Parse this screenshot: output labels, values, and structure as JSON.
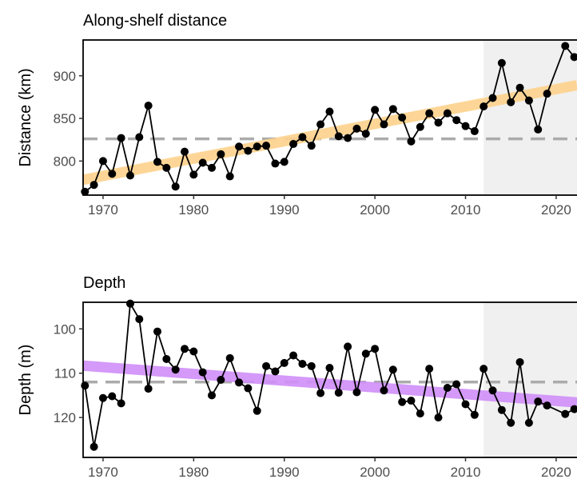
{
  "chart_data": [
    {
      "type": "line",
      "title": "Along-shelf distance",
      "xlabel": "",
      "ylabel": "Distance (km)",
      "xlim": [
        1967.8,
        2022.3
      ],
      "ylim": [
        760,
        942
      ],
      "xticks": [
        1970,
        1980,
        1990,
        2000,
        2010,
        2020
      ],
      "yticks": [
        800,
        850,
        900
      ],
      "y_reversed": false,
      "grid": false,
      "shaded_region": {
        "from": 2012,
        "to": 2022.3,
        "color": "#f0f0f0"
      },
      "reference_line": {
        "y": 826,
        "style": "dashed",
        "color": "#a6a6a6"
      },
      "trend_line": {
        "x": [
          1967.8,
          2022.3
        ],
        "y": [
          778,
          889
        ],
        "color": "#fdd18c"
      },
      "series": [
        {
          "x": [
            1968,
            1969,
            1970,
            1971,
            1972,
            1973,
            1974,
            1975,
            1976,
            1977,
            1978,
            1979,
            1980,
            1981,
            1982,
            1983,
            1984,
            1985,
            1986,
            1987,
            1988,
            1989,
            1990,
            1991,
            1992,
            1993,
            1994,
            1995,
            1996,
            1997,
            1998,
            1999,
            2000,
            2001,
            2002,
            2003,
            2004,
            2005,
            2006,
            2007,
            2008,
            2009,
            2010,
            2011,
            2012,
            2013,
            2014,
            2015,
            2016,
            2017,
            2018,
            2019,
            2021,
            2022
          ],
          "values": [
            764,
            772,
            800,
            785,
            827,
            783,
            828,
            865,
            799,
            792,
            770,
            811,
            784,
            798,
            792,
            808,
            782,
            817,
            812,
            817,
            818,
            797,
            799,
            820,
            828,
            818,
            843,
            858,
            829,
            827,
            838,
            832,
            860,
            843,
            861,
            851,
            823,
            840,
            856,
            845,
            856,
            848,
            841,
            835,
            864,
            874,
            915,
            869,
            886,
            871,
            837,
            879,
            935,
            922
          ]
        }
      ]
    },
    {
      "type": "line",
      "title": "Depth",
      "xlabel": "",
      "ylabel": "Depth (m)",
      "xlim": [
        1967.8,
        2022.3
      ],
      "ylim": [
        94,
        129
      ],
      "xticks": [
        1970,
        1980,
        1990,
        2000,
        2010,
        2020
      ],
      "yticks": [
        100,
        110,
        120
      ],
      "y_reversed": true,
      "grid": false,
      "shaded_region": {
        "from": 2012,
        "to": 2022.3,
        "color": "#f0f0f0"
      },
      "reference_line": {
        "y": 112,
        "style": "dashed",
        "color": "#a6a6a6"
      },
      "trend_line": {
        "x": [
          1967.8,
          2022.3
        ],
        "y": [
          108.3,
          116.6
        ],
        "color": "#cf8ef8"
      },
      "series": [
        {
          "x": [
            1968,
            1969,
            1970,
            1971,
            1972,
            1973,
            1974,
            1975,
            1976,
            1977,
            1978,
            1979,
            1980,
            1981,
            1982,
            1983,
            1984,
            1985,
            1986,
            1987,
            1988,
            1989,
            1990,
            1991,
            1992,
            1993,
            1994,
            1995,
            1996,
            1997,
            1998,
            1999,
            2000,
            2001,
            2002,
            2003,
            2004,
            2005,
            2006,
            2007,
            2008,
            2009,
            2010,
            2011,
            2012,
            2013,
            2014,
            2015,
            2016,
            2017,
            2018,
            2019,
            2021,
            2022
          ],
          "values": [
            112.8,
            126.6,
            115.6,
            115.2,
            116.8,
            94.3,
            97.8,
            113.5,
            100.6,
            106.8,
            109.2,
            104.5,
            105.1,
            109.8,
            115.0,
            111.5,
            106.6,
            112.1,
            113.4,
            118.5,
            108.4,
            109.6,
            107.7,
            106.0,
            107.9,
            108.4,
            114.5,
            108.8,
            114.4,
            104.0,
            114.3,
            105.6,
            104.5,
            113.9,
            109.2,
            116.5,
            116.2,
            119.1,
            109.0,
            120.0,
            113.3,
            112.5,
            117.0,
            119.4,
            109.0,
            113.9,
            118.3,
            121.2,
            107.5,
            121.2,
            116.4,
            117.3,
            119.2,
            118.1
          ]
        }
      ]
    }
  ]
}
